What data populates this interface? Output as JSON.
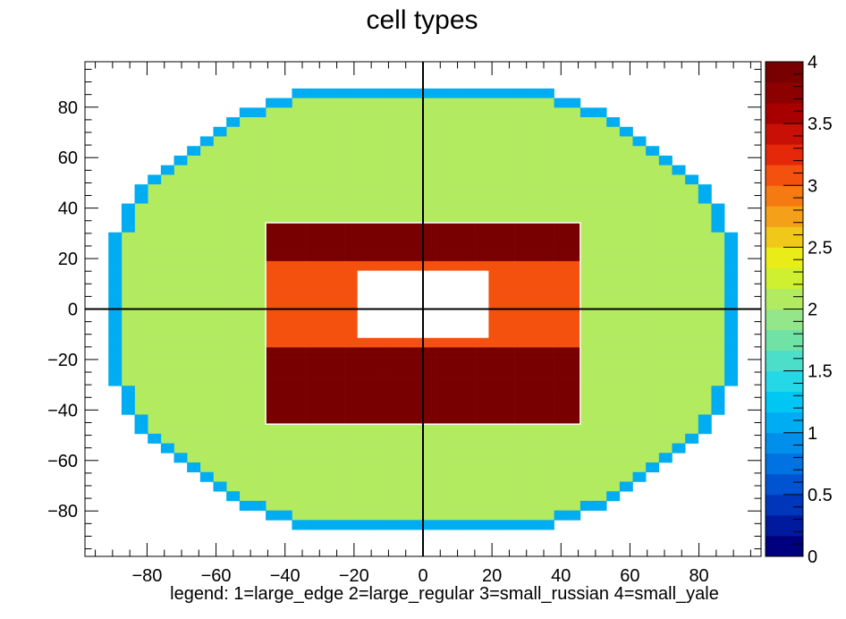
{
  "chart_data": {
    "type": "heatmap",
    "title": "cell types",
    "xlabel": "legend: 1=large_edge 2=large_regular 3=small_russian 4=small_yale",
    "ylabel": "",
    "xlim": [
      -98,
      98
    ],
    "ylim": [
      -98,
      98
    ],
    "x_ticks": [
      -80,
      -60,
      -40,
      -20,
      0,
      20,
      40,
      60,
      80
    ],
    "y_ticks": [
      -80,
      -60,
      -40,
      -20,
      0,
      20,
      40,
      60,
      80
    ],
    "colorbar": {
      "range": [
        0,
        4
      ],
      "ticks": [
        0,
        0.5,
        1,
        1.5,
        2,
        2.5,
        3,
        3.5,
        4
      ],
      "tick_labels": [
        "0",
        "0.5",
        "1",
        "1.5",
        "2",
        "2.5",
        "3",
        "3.5",
        "4"
      ]
    },
    "grid": false,
    "legend": "none",
    "row_half_widths": [
      10,
      12,
      14,
      15,
      16,
      17,
      18,
      19,
      20,
      21,
      22,
      22,
      23,
      23,
      23,
      24,
      24,
      24,
      24,
      24,
      24,
      24,
      24,
      24,
      24,
      24,
      24,
      24,
      24,
      24,
      24,
      23,
      23,
      23,
      22,
      22,
      21,
      20,
      19,
      18,
      17,
      16,
      15,
      14,
      12,
      10
    ],
    "large_cell_size": 3.8,
    "small_region": {
      "x": [
        -45.6,
        45.6
      ],
      "y": [
        -45.6,
        34.2
      ],
      "small_cell_size": 3.8
    },
    "yale_region": {
      "x": [
        -45.6,
        45.6
      ],
      "y": [
        19.0,
        34.2
      ]
    },
    "yale_lower_region": {
      "x": [
        -45.6,
        45.6
      ],
      "y": [
        -45.6,
        -15.2
      ]
    },
    "russian_region": {
      "x": [
        -45.6,
        45.6
      ],
      "y": [
        -15.2,
        19.0
      ]
    },
    "hole": {
      "x": [
        -19.0,
        19.0
      ],
      "y": [
        -11.4,
        15.2
      ]
    },
    "values": {
      "large_edge": 1,
      "large_regular": 2,
      "small_russian": 3,
      "small_yale": 4
    }
  }
}
